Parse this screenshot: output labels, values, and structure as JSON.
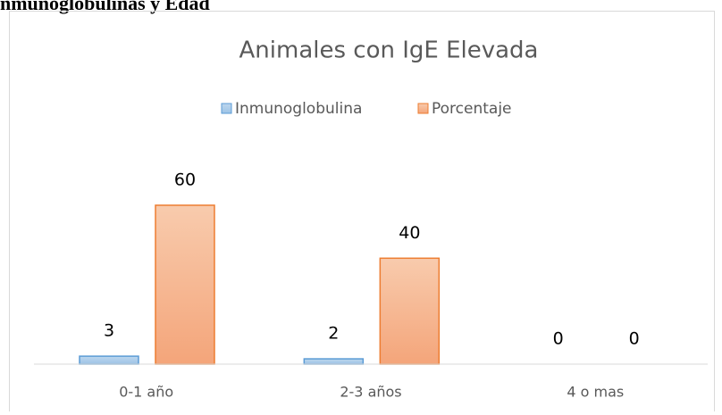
{
  "heading": "nmunoglobulinas y Edad",
  "chart_data": {
    "type": "bar",
    "title": "Animales con IgE Elevada",
    "categories": [
      "0-1 año",
      "2-3 años",
      "4 o mas"
    ],
    "series": [
      {
        "name": "Inmunoglobulina",
        "color": "#5b9bd5",
        "values": [
          3,
          2,
          0
        ]
      },
      {
        "name": "Porcentaje",
        "color": "#ed7d31",
        "values": [
          60,
          40,
          0
        ]
      }
    ],
    "ylim": [
      0,
      70
    ],
    "legend": "top"
  }
}
